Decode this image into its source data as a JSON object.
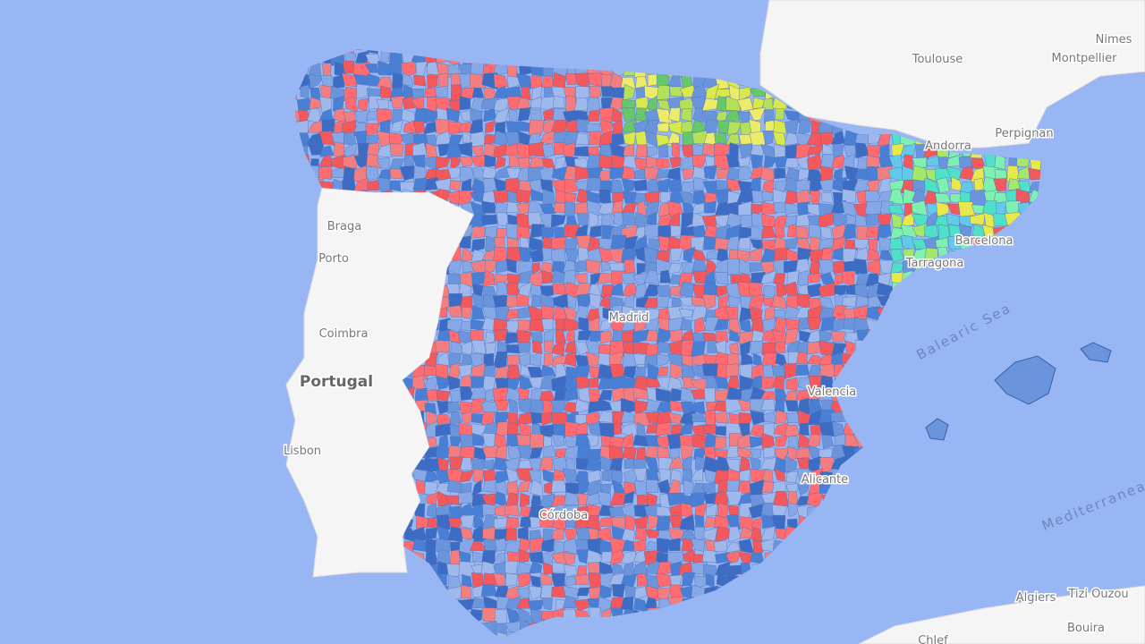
{
  "map": {
    "labels": {
      "toulouse": "Toulouse",
      "nimes": "Nimes",
      "montpellier": "Montpellier",
      "perpignan": "Perpignan",
      "andorra": "Andorra",
      "braga": "Braga",
      "porto": "Porto",
      "coimbra": "Coimbra",
      "portugal": "Portugal",
      "lisbon": "Lisbon",
      "madrid": "Madrid",
      "barcelona": "Barcelona",
      "tarragona": "Tarragona",
      "valencia": "Valencia",
      "alicante": "Alicante",
      "cordoba": "Córdoba",
      "balearic_sea": "Balearic Sea",
      "mediterranean": "Mediterranea",
      "algiers": "Algiers",
      "tizi_ouzou": "Tizi Ouzou",
      "bouira": "Bouira",
      "chlef": "Chlef"
    }
  }
}
